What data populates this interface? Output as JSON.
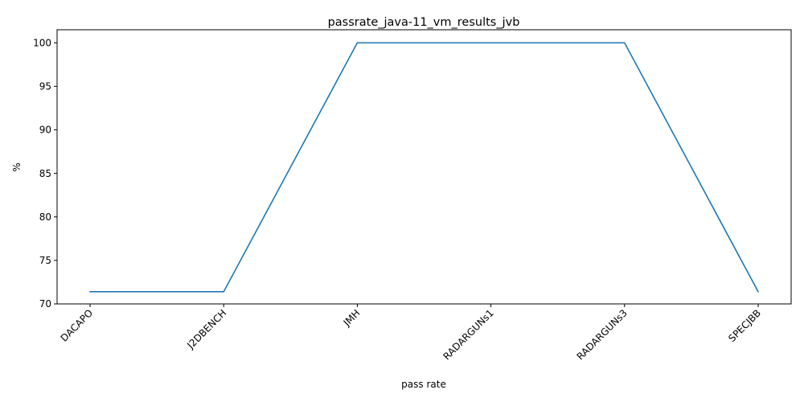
{
  "chart_data": {
    "type": "line",
    "title": "passrate_java-11_vm_results_jvb",
    "xlabel": "pass rate",
    "ylabel": "%",
    "categories": [
      "DACAPO",
      "J2DBENCH",
      "JMH",
      "RADARGUNs1",
      "RADARGUNs3",
      "SPECJBB"
    ],
    "series": [
      {
        "values": [
          71.4,
          71.4,
          100,
          100,
          100,
          71.4
        ]
      }
    ],
    "ylim": [
      70,
      101.5
    ],
    "yticks": [
      70,
      75,
      80,
      85,
      90,
      95,
      100
    ],
    "grid": false,
    "colors": {
      "series": "#1f77b4"
    }
  }
}
